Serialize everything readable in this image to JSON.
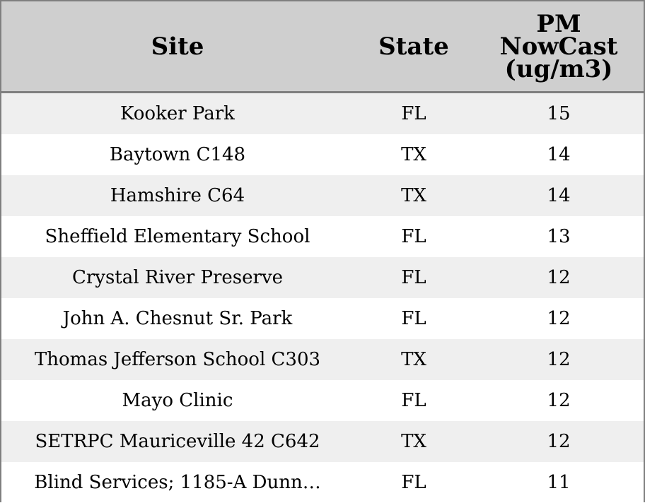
{
  "chart_data": {
    "type": "table",
    "columns": [
      "Site",
      "State",
      "PM\nNowCast\n(ug/m3)"
    ],
    "rows": [
      [
        "Kooker Park",
        "FL",
        "15"
      ],
      [
        "Baytown C148",
        "TX",
        "14"
      ],
      [
        "Hamshire C64",
        "TX",
        "14"
      ],
      [
        "Sheffield Elementary School",
        "FL",
        "13"
      ],
      [
        "Crystal River Preserve",
        "FL",
        "12"
      ],
      [
        "John A. Chesnut Sr. Park",
        "FL",
        "12"
      ],
      [
        "Thomas Jefferson School C303",
        "TX",
        "12"
      ],
      [
        "Mayo Clinic",
        "FL",
        "12"
      ],
      [
        "SETRPC Mauriceville 42 C642",
        "TX",
        "12"
      ],
      [
        "Blind Services; 1185-A Dunn…",
        "FL",
        "11"
      ]
    ]
  },
  "colors": {
    "header_bg": "#cfcfcf",
    "row_stripe": "#efefef",
    "row_plain": "#ffffff",
    "border": "#7f7f7f"
  }
}
